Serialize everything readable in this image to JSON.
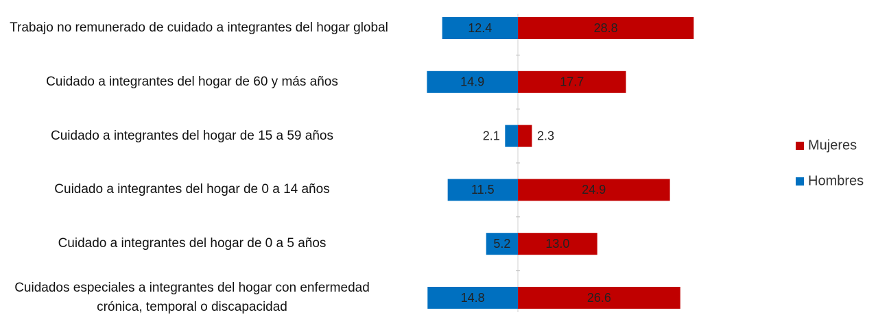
{
  "chart_data": {
    "type": "butterfly",
    "categories": [
      "Trabajo no remunerado de cuidado a integrantes del hogar global",
      "Cuidado a integrantes del hogar de 60 y más años",
      "Cuidado a integrantes del hogar de 15 a 59 años",
      "Cuidado a integrantes del hogar de 0 a 14 años",
      "Cuidado a integrantes del hogar de 0 a 5 años",
      "Cuidados especiales  a integrantes del hogar con enfermedad crónica, temporal o discapacidad"
    ],
    "series": [
      {
        "name": "Hombres",
        "color": "#0070c0",
        "side": "left",
        "values": [
          12.4,
          14.9,
          2.1,
          11.5,
          5.2,
          14.8
        ],
        "value_labels": [
          "12.4",
          "14.9",
          "2.1",
          "11.5",
          "5.2",
          "14.8"
        ]
      },
      {
        "name": "Mujeres",
        "color": "#c00000",
        "side": "right",
        "values": [
          28.8,
          17.7,
          2.3,
          24.9,
          13.0,
          26.6
        ],
        "value_labels": [
          "28.8",
          "17.7",
          "2.3",
          "24.9",
          "13.0",
          "26.6"
        ]
      }
    ],
    "legend": "right"
  }
}
